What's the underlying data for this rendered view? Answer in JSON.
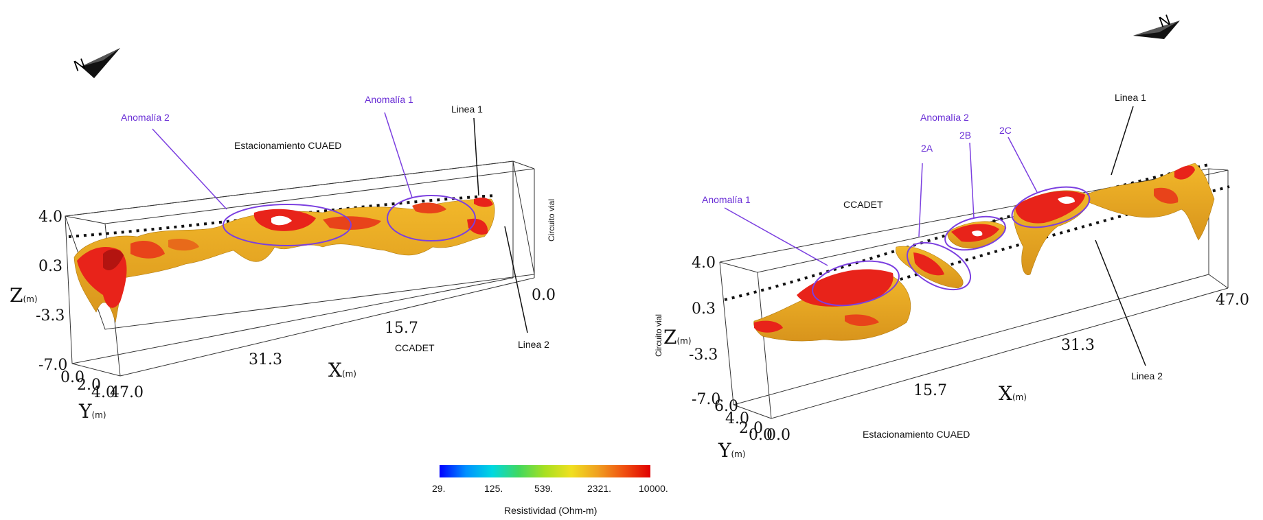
{
  "colors": {
    "annotation": "#6a2fd6",
    "high": "#e8231a",
    "mid": "#f0b126",
    "frame": "#333333"
  },
  "colorbar": {
    "stops": [
      "#0000ff",
      "#0090ff",
      "#00d8e0",
      "#40d860",
      "#a8e020",
      "#f0e020",
      "#f0a020",
      "#f05010",
      "#e00000"
    ],
    "ticks": [
      "29.",
      "125.",
      "539.",
      "2321.",
      "10000."
    ],
    "label": "Resistividad (Ohm-m)"
  },
  "left": {
    "labels": {
      "anomalia2": "Anomalía 2",
      "anomalia1": "Anomalía 1",
      "linea1": "Linea 1",
      "linea2": "Linea 2",
      "estacionamiento": "Estacionamiento CUAED",
      "ccadet": "CCADET",
      "circuito": "Circuito vial"
    },
    "z_ticks": [
      "4.0",
      "0.3",
      "-3.3",
      "-7.0"
    ],
    "x_ticks": [
      "0.0",
      "15.7",
      "31.3",
      "47.0"
    ],
    "y_ticks": [
      "0.0",
      "2.0",
      "4.0"
    ],
    "z_name": "Z",
    "x_name": "X",
    "y_name": "Y",
    "unit": "(m)",
    "north": "N"
  },
  "right": {
    "labels": {
      "anomalia1": "Anomalía 1",
      "anomalia2": "Anomalía 2",
      "a2a": "2A",
      "a2b": "2B",
      "a2c": "2C",
      "linea1": "Linea 1",
      "linea2": "Linea 2",
      "ccadet": "CCADET",
      "estacionamiento": "Estacionamiento CUAED",
      "circuito": "Circuito vial"
    },
    "z_ticks": [
      "4.0",
      "0.3",
      "-3.3",
      "-7.0"
    ],
    "x_ticks": [
      "0.0",
      "15.7",
      "31.3",
      "47.0"
    ],
    "y_ticks": [
      "6.0",
      "4.0",
      "2.0",
      "0.0"
    ],
    "z_name": "Z",
    "x_name": "X",
    "y_name": "Y",
    "unit": "(m)",
    "north": "N"
  }
}
